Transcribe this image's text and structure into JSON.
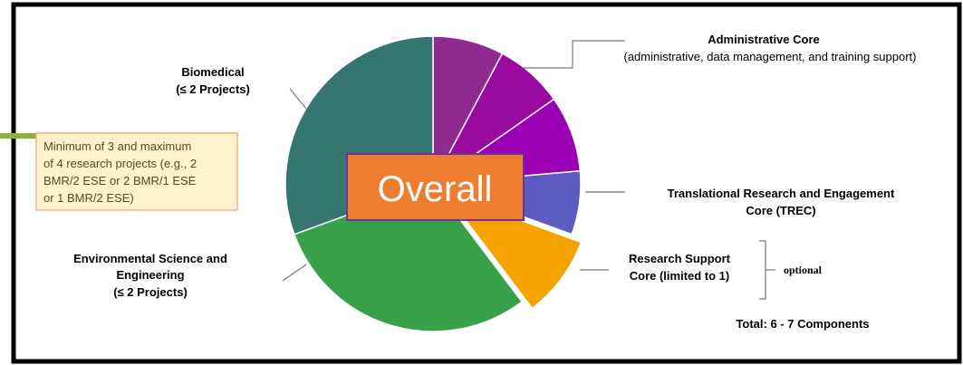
{
  "overall": "Overall",
  "note": [
    "Minimum of 3 and maximum",
    "of 4 research projects (e.g., 2",
    "BMR/2 ESE or 2 BMR/1 ESE",
    "or 1 BMR/2 ESE)"
  ],
  "biomedical": [
    "Biomedical",
    "(≤ 2 Projects)"
  ],
  "environmental": [
    "Environmental Science and",
    "Engineering",
    "(≤ 2 Projects)"
  ],
  "administrative": [
    "Administrative Core",
    "(administrative, data management, and training support)"
  ],
  "trec": [
    "Translational Research and Engagement",
    "Core (TREC)"
  ],
  "research_support": [
    "Research Support",
    "Core (limited to 1)"
  ],
  "optional": "optional",
  "total": "Total: 6 - 7 Components"
}
